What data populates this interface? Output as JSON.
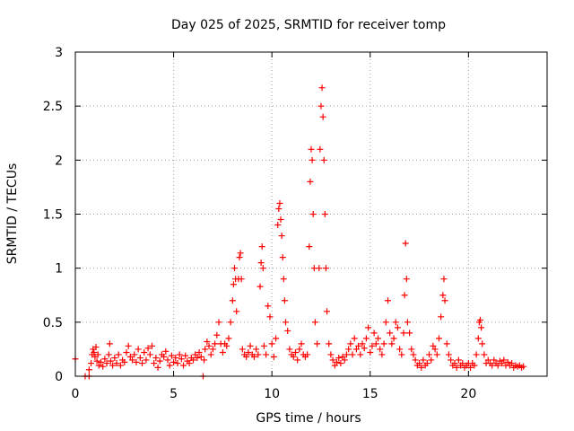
{
  "chart_data": {
    "type": "scatter",
    "title": "Day 025 of 2025, SRMTID for receiver tomp",
    "xlabel": "GPS time / hours",
    "ylabel": "SRMTID / TECUs",
    "xlim": [
      0,
      24
    ],
    "ylim": [
      0,
      3
    ],
    "x_ticks": [
      0,
      5,
      10,
      15,
      20
    ],
    "x_tick_labels": [
      "0",
      "5",
      "10",
      "15",
      "20"
    ],
    "y_ticks": [
      0,
      0.5,
      1,
      1.5,
      2,
      2.5,
      3
    ],
    "y_tick_labels": [
      "0",
      "0.5",
      "1",
      "1.5",
      "2",
      "2.5",
      "3"
    ],
    "grid": true,
    "marker": "+",
    "series": [
      {
        "name": "SRMTID",
        "color": "#ff0000",
        "points": [
          [
            0.0,
            0.16
          ],
          [
            0.5,
            0.0
          ],
          [
            0.7,
            0.0
          ],
          [
            0.7,
            0.06
          ],
          [
            0.8,
            0.12
          ],
          [
            0.85,
            0.2
          ],
          [
            0.9,
            0.25
          ],
          [
            0.95,
            0.22
          ],
          [
            1.0,
            0.18
          ],
          [
            1.05,
            0.27
          ],
          [
            1.1,
            0.14
          ],
          [
            1.15,
            0.2
          ],
          [
            1.2,
            0.1
          ],
          [
            1.3,
            0.13
          ],
          [
            1.4,
            0.09
          ],
          [
            1.5,
            0.16
          ],
          [
            1.6,
            0.12
          ],
          [
            1.7,
            0.2
          ],
          [
            1.75,
            0.3
          ],
          [
            1.8,
            0.14
          ],
          [
            1.9,
            0.1
          ],
          [
            2.0,
            0.17
          ],
          [
            2.1,
            0.12
          ],
          [
            2.2,
            0.2
          ],
          [
            2.3,
            0.1
          ],
          [
            2.4,
            0.15
          ],
          [
            2.5,
            0.13
          ],
          [
            2.6,
            0.22
          ],
          [
            2.7,
            0.28
          ],
          [
            2.8,
            0.18
          ],
          [
            2.9,
            0.15
          ],
          [
            3.0,
            0.2
          ],
          [
            3.1,
            0.13
          ],
          [
            3.2,
            0.25
          ],
          [
            3.3,
            0.17
          ],
          [
            3.4,
            0.12
          ],
          [
            3.5,
            0.22
          ],
          [
            3.6,
            0.15
          ],
          [
            3.7,
            0.26
          ],
          [
            3.8,
            0.2
          ],
          [
            3.9,
            0.28
          ],
          [
            4.0,
            0.12
          ],
          [
            4.1,
            0.17
          ],
          [
            4.2,
            0.08
          ],
          [
            4.3,
            0.14
          ],
          [
            4.4,
            0.2
          ],
          [
            4.5,
            0.18
          ],
          [
            4.6,
            0.23
          ],
          [
            4.7,
            0.15
          ],
          [
            4.8,
            0.1
          ],
          [
            4.9,
            0.19
          ],
          [
            5.0,
            0.13
          ],
          [
            5.1,
            0.17
          ],
          [
            5.2,
            0.12
          ],
          [
            5.3,
            0.2
          ],
          [
            5.4,
            0.16
          ],
          [
            5.5,
            0.1
          ],
          [
            5.6,
            0.19
          ],
          [
            5.7,
            0.14
          ],
          [
            5.8,
            0.12
          ],
          [
            5.9,
            0.17
          ],
          [
            6.0,
            0.15
          ],
          [
            6.1,
            0.2
          ],
          [
            6.2,
            0.17
          ],
          [
            6.3,
            0.22
          ],
          [
            6.4,
            0.18
          ],
          [
            6.5,
            0.0
          ],
          [
            6.55,
            0.15
          ],
          [
            6.6,
            0.25
          ],
          [
            6.7,
            0.32
          ],
          [
            6.8,
            0.28
          ],
          [
            6.9,
            0.2
          ],
          [
            7.0,
            0.25
          ],
          [
            7.1,
            0.3
          ],
          [
            7.2,
            0.38
          ],
          [
            7.3,
            0.5
          ],
          [
            7.4,
            0.3
          ],
          [
            7.5,
            0.22
          ],
          [
            7.6,
            0.3
          ],
          [
            7.7,
            0.28
          ],
          [
            7.8,
            0.35
          ],
          [
            7.9,
            0.5
          ],
          [
            8.0,
            0.7
          ],
          [
            8.05,
            0.85
          ],
          [
            8.1,
            1.0
          ],
          [
            8.15,
            0.9
          ],
          [
            8.2,
            0.6
          ],
          [
            8.3,
            0.9
          ],
          [
            8.35,
            1.1
          ],
          [
            8.4,
            1.14
          ],
          [
            8.45,
            0.9
          ],
          [
            8.5,
            0.25
          ],
          [
            8.6,
            0.2
          ],
          [
            8.7,
            0.18
          ],
          [
            8.8,
            0.22
          ],
          [
            8.9,
            0.28
          ],
          [
            9.0,
            0.2
          ],
          [
            9.1,
            0.18
          ],
          [
            9.2,
            0.25
          ],
          [
            9.3,
            0.2
          ],
          [
            9.4,
            0.83
          ],
          [
            9.45,
            1.05
          ],
          [
            9.5,
            1.2
          ],
          [
            9.55,
            1.0
          ],
          [
            9.6,
            0.28
          ],
          [
            9.7,
            0.2
          ],
          [
            9.8,
            0.65
          ],
          [
            9.9,
            0.55
          ],
          [
            10.0,
            0.3
          ],
          [
            10.1,
            0.18
          ],
          [
            10.2,
            0.35
          ],
          [
            10.3,
            1.4
          ],
          [
            10.35,
            1.55
          ],
          [
            10.4,
            1.6
          ],
          [
            10.45,
            1.45
          ],
          [
            10.5,
            1.3
          ],
          [
            10.55,
            1.1
          ],
          [
            10.6,
            0.9
          ],
          [
            10.65,
            0.7
          ],
          [
            10.7,
            0.5
          ],
          [
            10.8,
            0.42
          ],
          [
            10.9,
            0.25
          ],
          [
            11.0,
            0.2
          ],
          [
            11.1,
            0.18
          ],
          [
            11.2,
            0.22
          ],
          [
            11.3,
            0.15
          ],
          [
            11.4,
            0.25
          ],
          [
            11.5,
            0.3
          ],
          [
            11.6,
            0.2
          ],
          [
            11.7,
            0.18
          ],
          [
            11.8,
            0.2
          ],
          [
            11.9,
            1.2
          ],
          [
            11.95,
            1.8
          ],
          [
            12.0,
            2.1
          ],
          [
            12.05,
            2.0
          ],
          [
            12.1,
            1.5
          ],
          [
            12.15,
            1.0
          ],
          [
            12.2,
            0.5
          ],
          [
            12.3,
            0.3
          ],
          [
            12.4,
            1.0
          ],
          [
            12.45,
            2.1
          ],
          [
            12.5,
            2.5
          ],
          [
            12.55,
            2.67
          ],
          [
            12.6,
            2.4
          ],
          [
            12.65,
            2.0
          ],
          [
            12.7,
            1.5
          ],
          [
            12.75,
            1.0
          ],
          [
            12.8,
            0.6
          ],
          [
            12.9,
            0.3
          ],
          [
            13.0,
            0.2
          ],
          [
            13.1,
            0.15
          ],
          [
            13.2,
            0.1
          ],
          [
            13.3,
            0.13
          ],
          [
            13.4,
            0.17
          ],
          [
            13.5,
            0.12
          ],
          [
            13.6,
            0.18
          ],
          [
            13.7,
            0.15
          ],
          [
            13.8,
            0.2
          ],
          [
            13.9,
            0.25
          ],
          [
            14.0,
            0.3
          ],
          [
            14.1,
            0.2
          ],
          [
            14.2,
            0.35
          ],
          [
            14.3,
            0.25
          ],
          [
            14.4,
            0.28
          ],
          [
            14.5,
            0.2
          ],
          [
            14.6,
            0.3
          ],
          [
            14.7,
            0.26
          ],
          [
            14.8,
            0.35
          ],
          [
            14.9,
            0.45
          ],
          [
            15.0,
            0.22
          ],
          [
            15.1,
            0.28
          ],
          [
            15.2,
            0.4
          ],
          [
            15.3,
            0.3
          ],
          [
            15.4,
            0.35
          ],
          [
            15.5,
            0.25
          ],
          [
            15.6,
            0.2
          ],
          [
            15.7,
            0.3
          ],
          [
            15.8,
            0.5
          ],
          [
            15.9,
            0.7
          ],
          [
            16.0,
            0.4
          ],
          [
            16.1,
            0.3
          ],
          [
            16.2,
            0.35
          ],
          [
            16.3,
            0.5
          ],
          [
            16.4,
            0.45
          ],
          [
            16.5,
            0.25
          ],
          [
            16.6,
            0.2
          ],
          [
            16.7,
            0.4
          ],
          [
            16.75,
            0.75
          ],
          [
            16.8,
            1.23
          ],
          [
            16.85,
            0.9
          ],
          [
            16.9,
            0.5
          ],
          [
            17.0,
            0.4
          ],
          [
            17.1,
            0.25
          ],
          [
            17.2,
            0.2
          ],
          [
            17.3,
            0.15
          ],
          [
            17.4,
            0.1
          ],
          [
            17.5,
            0.12
          ],
          [
            17.6,
            0.08
          ],
          [
            17.7,
            0.15
          ],
          [
            17.8,
            0.1
          ],
          [
            17.9,
            0.12
          ],
          [
            18.0,
            0.2
          ],
          [
            18.1,
            0.15
          ],
          [
            18.2,
            0.28
          ],
          [
            18.3,
            0.25
          ],
          [
            18.4,
            0.2
          ],
          [
            18.5,
            0.35
          ],
          [
            18.6,
            0.55
          ],
          [
            18.7,
            0.75
          ],
          [
            18.75,
            0.9
          ],
          [
            18.8,
            0.7
          ],
          [
            18.9,
            0.3
          ],
          [
            19.0,
            0.2
          ],
          [
            19.1,
            0.15
          ],
          [
            19.2,
            0.1
          ],
          [
            19.3,
            0.12
          ],
          [
            19.4,
            0.08
          ],
          [
            19.5,
            0.15
          ],
          [
            19.6,
            0.1
          ],
          [
            19.7,
            0.12
          ],
          [
            19.8,
            0.08
          ],
          [
            19.9,
            0.1
          ],
          [
            20.0,
            0.12
          ],
          [
            20.1,
            0.08
          ],
          [
            20.2,
            0.12
          ],
          [
            20.3,
            0.1
          ],
          [
            20.4,
            0.2
          ],
          [
            20.5,
            0.35
          ],
          [
            20.55,
            0.5
          ],
          [
            20.6,
            0.52
          ],
          [
            20.65,
            0.45
          ],
          [
            20.7,
            0.3
          ],
          [
            20.8,
            0.2
          ],
          [
            20.9,
            0.12
          ],
          [
            21.0,
            0.15
          ],
          [
            21.1,
            0.12
          ],
          [
            21.2,
            0.1
          ],
          [
            21.3,
            0.15
          ],
          [
            21.4,
            0.12
          ],
          [
            21.5,
            0.1
          ],
          [
            21.6,
            0.14
          ],
          [
            21.7,
            0.12
          ],
          [
            21.8,
            0.15
          ],
          [
            21.9,
            0.1
          ],
          [
            22.0,
            0.13
          ],
          [
            22.1,
            0.1
          ],
          [
            22.2,
            0.12
          ],
          [
            22.3,
            0.08
          ],
          [
            22.4,
            0.1
          ],
          [
            22.5,
            0.09
          ],
          [
            22.6,
            0.1
          ],
          [
            22.7,
            0.08
          ],
          [
            22.8,
            0.09
          ]
        ]
      }
    ]
  },
  "colors": {
    "series": "#ff0000",
    "grid": "#a0a0a0",
    "axis": "#000000",
    "background": "#ffffff"
  }
}
